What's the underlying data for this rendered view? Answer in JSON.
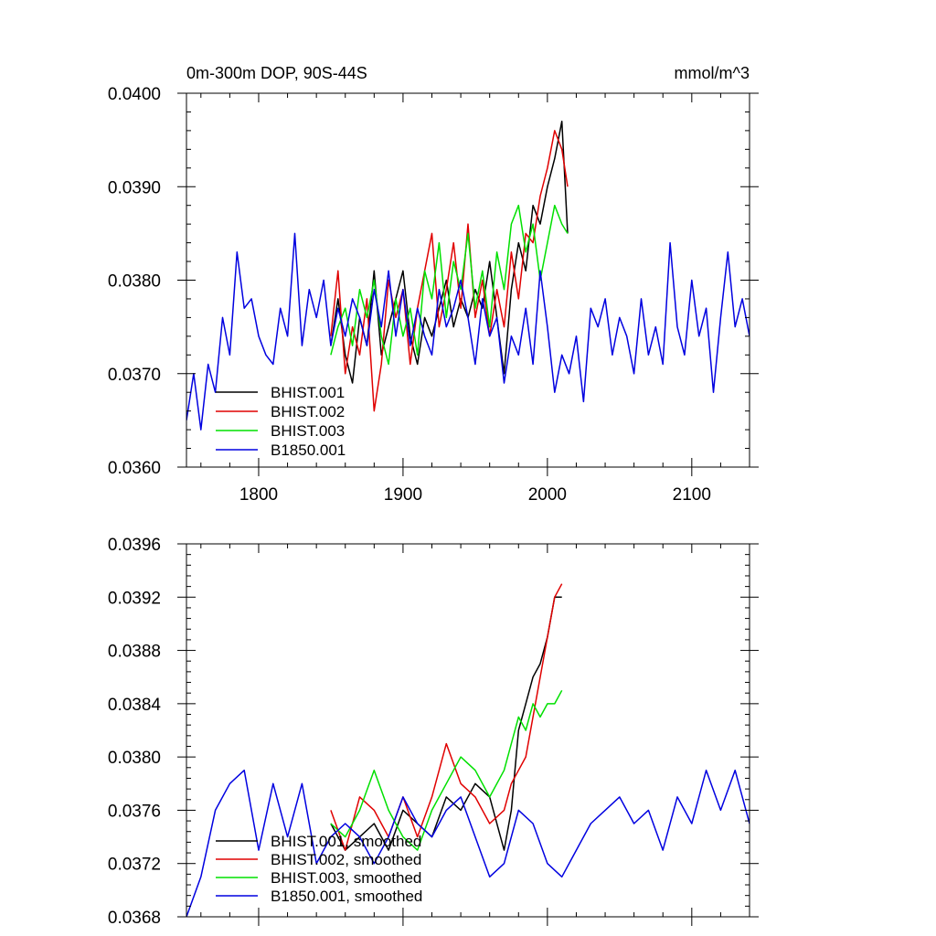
{
  "colors": {
    "BHIST.001": "#000000",
    "BHIST.002": "#e00000",
    "BHIST.003": "#00e000",
    "B1850.001": "#0000e0"
  },
  "chart_data": [
    {
      "type": "line",
      "title_left": "0m-300m DOP, 90S-44S",
      "title_right": "mmol/m^3",
      "xlim": [
        1750,
        2140
      ],
      "ylim": [
        0.036,
        0.04
      ],
      "x_ticks": [
        1800,
        1900,
        2000,
        2100
      ],
      "x_tick_labels": [
        "1800",
        "1900",
        "2000",
        "2100"
      ],
      "y_ticks": [
        0.036,
        0.037,
        0.038,
        0.039,
        0.04
      ],
      "y_tick_labels": [
        "0.0360",
        "0.0370",
        "0.0380",
        "0.0390",
        "0.0400"
      ],
      "legend_position": "bottom-left",
      "series": [
        {
          "name": "BHIST.001",
          "color_key": "BHIST.001",
          "x": [
            1850,
            1855,
            1860,
            1865,
            1870,
            1875,
            1880,
            1885,
            1890,
            1895,
            1900,
            1905,
            1910,
            1915,
            1920,
            1925,
            1930,
            1935,
            1940,
            1945,
            1950,
            1955,
            1960,
            1965,
            1970,
            1975,
            1980,
            1985,
            1990,
            1995,
            2000,
            2005,
            2010,
            2014
          ],
          "y": [
            0.0373,
            0.0378,
            0.0372,
            0.0369,
            0.0376,
            0.0373,
            0.0381,
            0.0372,
            0.0375,
            0.0378,
            0.0381,
            0.0374,
            0.0371,
            0.0376,
            0.0374,
            0.0377,
            0.038,
            0.0375,
            0.0378,
            0.0376,
            0.0379,
            0.0377,
            0.0382,
            0.0376,
            0.037,
            0.0379,
            0.0384,
            0.0381,
            0.0388,
            0.0386,
            0.039,
            0.0393,
            0.0397,
            0.0385
          ]
        },
        {
          "name": "BHIST.002",
          "color_key": "BHIST.002",
          "x": [
            1850,
            1855,
            1860,
            1865,
            1870,
            1875,
            1880,
            1885,
            1890,
            1895,
            1900,
            1905,
            1910,
            1915,
            1920,
            1925,
            1930,
            1935,
            1940,
            1945,
            1950,
            1955,
            1960,
            1965,
            1970,
            1975,
            1980,
            1985,
            1990,
            1995,
            2000,
            2005,
            2010,
            2014
          ],
          "y": [
            0.0374,
            0.0381,
            0.037,
            0.0375,
            0.0372,
            0.0378,
            0.0366,
            0.0371,
            0.038,
            0.0376,
            0.0379,
            0.0371,
            0.0377,
            0.0381,
            0.0385,
            0.0375,
            0.0379,
            0.0384,
            0.0377,
            0.0386,
            0.0376,
            0.038,
            0.0374,
            0.0379,
            0.0375,
            0.0383,
            0.0378,
            0.0385,
            0.0384,
            0.0389,
            0.0392,
            0.0396,
            0.0394,
            0.039
          ]
        },
        {
          "name": "BHIST.003",
          "color_key": "BHIST.003",
          "x": [
            1850,
            1855,
            1860,
            1865,
            1870,
            1875,
            1880,
            1885,
            1890,
            1895,
            1900,
            1905,
            1910,
            1915,
            1920,
            1925,
            1930,
            1935,
            1940,
            1945,
            1950,
            1955,
            1960,
            1965,
            1970,
            1975,
            1980,
            1985,
            1990,
            1995,
            2000,
            2005,
            2010,
            2014
          ],
          "y": [
            0.0372,
            0.0375,
            0.0377,
            0.0373,
            0.0379,
            0.0376,
            0.038,
            0.0374,
            0.0371,
            0.0378,
            0.0374,
            0.0377,
            0.0372,
            0.0381,
            0.0378,
            0.0384,
            0.0376,
            0.0382,
            0.0379,
            0.0385,
            0.0377,
            0.0381,
            0.0375,
            0.0383,
            0.0379,
            0.0386,
            0.0388,
            0.0383,
            0.0386,
            0.038,
            0.0384,
            0.0388,
            0.0386,
            0.0385
          ]
        },
        {
          "name": "B1850.001",
          "color_key": "B1850.001",
          "x": [
            1750,
            1755,
            1760,
            1765,
            1770,
            1775,
            1780,
            1785,
            1790,
            1795,
            1800,
            1805,
            1810,
            1815,
            1820,
            1825,
            1830,
            1835,
            1840,
            1845,
            1850,
            1855,
            1860,
            1865,
            1870,
            1875,
            1880,
            1885,
            1890,
            1895,
            1900,
            1905,
            1910,
            1915,
            1920,
            1925,
            1930,
            1935,
            1940,
            1945,
            1950,
            1955,
            1960,
            1965,
            1970,
            1975,
            1980,
            1985,
            1990,
            1995,
            2000,
            2005,
            2010,
            2015,
            2020,
            2025,
            2030,
            2035,
            2040,
            2045,
            2050,
            2055,
            2060,
            2065,
            2070,
            2075,
            2080,
            2085,
            2090,
            2095,
            2100,
            2105,
            2110,
            2115,
            2120,
            2125,
            2130,
            2135,
            2140
          ],
          "y": [
            0.0365,
            0.037,
            0.0364,
            0.0371,
            0.0368,
            0.0376,
            0.0372,
            0.0383,
            0.0377,
            0.0378,
            0.0374,
            0.0372,
            0.0371,
            0.0377,
            0.0374,
            0.0385,
            0.0373,
            0.0379,
            0.0376,
            0.038,
            0.0373,
            0.0377,
            0.0374,
            0.0378,
            0.0376,
            0.0373,
            0.0379,
            0.0375,
            0.0381,
            0.0374,
            0.0379,
            0.0373,
            0.0377,
            0.0374,
            0.0372,
            0.0379,
            0.0375,
            0.0377,
            0.038,
            0.0376,
            0.0371,
            0.0378,
            0.0374,
            0.0376,
            0.0369,
            0.0374,
            0.0372,
            0.0377,
            0.0371,
            0.0381,
            0.0375,
            0.0368,
            0.0372,
            0.037,
            0.0374,
            0.0367,
            0.0377,
            0.0375,
            0.0378,
            0.0372,
            0.0376,
            0.0374,
            0.037,
            0.0378,
            0.0372,
            0.0375,
            0.0371,
            0.0384,
            0.0375,
            0.0372,
            0.038,
            0.0374,
            0.0377,
            0.0368,
            0.0376,
            0.0383,
            0.0375,
            0.0378,
            0.0374
          ]
        }
      ]
    },
    {
      "type": "line",
      "xlim": [
        1750,
        2140
      ],
      "ylim": [
        0.0368,
        0.0396
      ],
      "x_ticks": [
        1800,
        1900,
        2000,
        2100
      ],
      "x_tick_labels": [
        "",
        "",
        "",
        ""
      ],
      "y_ticks": [
        0.0368,
        0.0372,
        0.0376,
        0.038,
        0.0384,
        0.0388,
        0.0392,
        0.0396
      ],
      "y_tick_labels": [
        "0.0368",
        "0.0372",
        "0.0376",
        "0.0380",
        "0.0384",
        "0.0388",
        "0.0392",
        "0.0396"
      ],
      "legend_position": "bottom-left",
      "series": [
        {
          "name": "BHIST.001, smoothed",
          "color_key": "BHIST.001",
          "x": [
            1850,
            1860,
            1870,
            1880,
            1890,
            1900,
            1910,
            1920,
            1930,
            1940,
            1950,
            1960,
            1970,
            1975,
            1980,
            1985,
            1990,
            1995,
            2000,
            2005,
            2010
          ],
          "y": [
            0.0375,
            0.0373,
            0.0374,
            0.0375,
            0.0373,
            0.0376,
            0.0375,
            0.0374,
            0.0377,
            0.0376,
            0.0378,
            0.0377,
            0.0373,
            0.0376,
            0.0382,
            0.0384,
            0.0386,
            0.0387,
            0.0389,
            0.0392,
            0.0392
          ]
        },
        {
          "name": "BHIST.002, smoothed",
          "color_key": "BHIST.002",
          "x": [
            1850,
            1860,
            1870,
            1880,
            1890,
            1900,
            1910,
            1920,
            1930,
            1940,
            1950,
            1960,
            1970,
            1975,
            1980,
            1985,
            1990,
            1995,
            2000,
            2005,
            2010
          ],
          "y": [
            0.0376,
            0.0373,
            0.0377,
            0.0376,
            0.0374,
            0.0377,
            0.0374,
            0.0377,
            0.0381,
            0.0378,
            0.0377,
            0.0375,
            0.0376,
            0.0378,
            0.0379,
            0.038,
            0.0383,
            0.0386,
            0.0389,
            0.0392,
            0.0393
          ]
        },
        {
          "name": "BHIST.003, smoothed",
          "color_key": "BHIST.003",
          "x": [
            1850,
            1860,
            1870,
            1880,
            1890,
            1900,
            1910,
            1920,
            1930,
            1940,
            1950,
            1960,
            1970,
            1975,
            1980,
            1985,
            1990,
            1995,
            2000,
            2005,
            2010
          ],
          "y": [
            0.0375,
            0.0374,
            0.0376,
            0.0379,
            0.0376,
            0.0374,
            0.0373,
            0.0376,
            0.0378,
            0.038,
            0.0379,
            0.0377,
            0.0379,
            0.0381,
            0.0383,
            0.0382,
            0.0384,
            0.0383,
            0.0384,
            0.0384,
            0.0385
          ]
        },
        {
          "name": "B1850.001, smoothed",
          "color_key": "B1850.001",
          "x": [
            1750,
            1760,
            1770,
            1780,
            1790,
            1800,
            1810,
            1820,
            1830,
            1840,
            1850,
            1860,
            1870,
            1880,
            1890,
            1900,
            1910,
            1920,
            1930,
            1940,
            1950,
            1960,
            1970,
            1980,
            1990,
            2000,
            2010,
            2020,
            2030,
            2040,
            2050,
            2060,
            2070,
            2080,
            2090,
            2100,
            2110,
            2120,
            2130,
            2140
          ],
          "y": [
            0.0368,
            0.0371,
            0.0376,
            0.0378,
            0.0379,
            0.0373,
            0.0378,
            0.0374,
            0.0378,
            0.0372,
            0.0374,
            0.0375,
            0.0374,
            0.0372,
            0.0374,
            0.0377,
            0.0375,
            0.0374,
            0.0376,
            0.0377,
            0.0374,
            0.0371,
            0.0372,
            0.0376,
            0.0375,
            0.0372,
            0.0371,
            0.0373,
            0.0375,
            0.0376,
            0.0377,
            0.0375,
            0.0376,
            0.0373,
            0.0377,
            0.0375,
            0.0379,
            0.0376,
            0.0379,
            0.0375
          ]
        }
      ]
    }
  ]
}
